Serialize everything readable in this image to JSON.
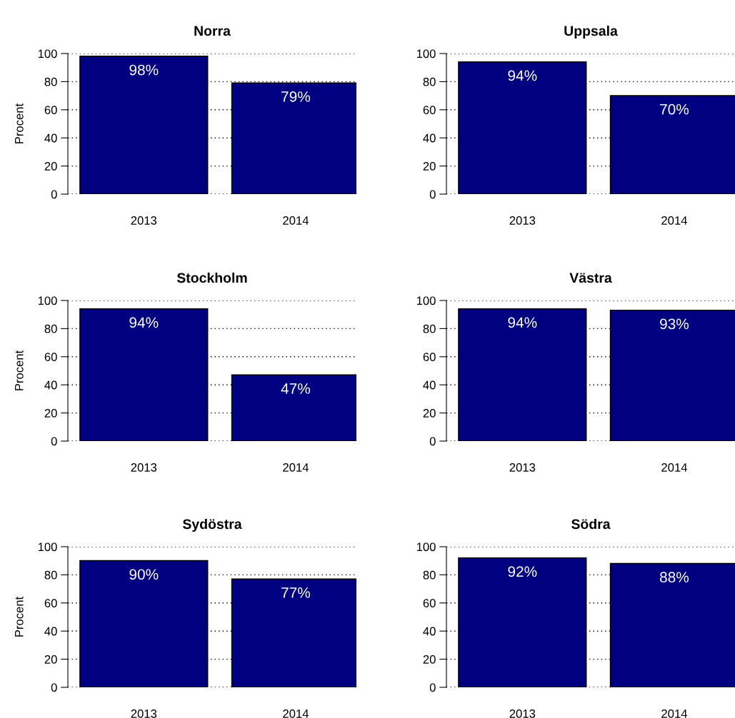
{
  "chart_data": [
    {
      "type": "bar",
      "title": "Norra",
      "ylabel": "Procent",
      "categories": [
        "2013",
        "2014"
      ],
      "values": [
        98,
        79
      ],
      "value_labels": [
        "98%",
        "79%"
      ],
      "color": "#000080",
      "ylim": [
        0,
        100
      ],
      "yticks": [
        0,
        20,
        40,
        60,
        80,
        100
      ],
      "grid": "y"
    },
    {
      "type": "bar",
      "title": "Uppsala",
      "categories": [
        "2013",
        "2014"
      ],
      "values": [
        94,
        70
      ],
      "value_labels": [
        "94%",
        "70%"
      ],
      "color": "#000080",
      "ylim": [
        0,
        100
      ],
      "yticks": [
        0,
        20,
        40,
        60,
        80,
        100
      ],
      "grid": "y"
    },
    {
      "type": "bar",
      "title": "Stockholm",
      "ylabel": "Procent",
      "categories": [
        "2013",
        "2014"
      ],
      "values": [
        94,
        47
      ],
      "value_labels": [
        "94%",
        "47%"
      ],
      "color": "#000080",
      "ylim": [
        0,
        100
      ],
      "yticks": [
        0,
        20,
        40,
        60,
        80,
        100
      ],
      "grid": "y"
    },
    {
      "type": "bar",
      "title": "Västra",
      "categories": [
        "2013",
        "2014"
      ],
      "values": [
        94,
        93
      ],
      "value_labels": [
        "94%",
        "93%"
      ],
      "color": "#000080",
      "ylim": [
        0,
        100
      ],
      "yticks": [
        0,
        20,
        40,
        60,
        80,
        100
      ],
      "grid": "y"
    },
    {
      "type": "bar",
      "title": "Sydöstra",
      "ylabel": "Procent",
      "categories": [
        "2013",
        "2014"
      ],
      "values": [
        90,
        77
      ],
      "value_labels": [
        "90%",
        "77%"
      ],
      "color": "#000080",
      "ylim": [
        0,
        100
      ],
      "yticks": [
        0,
        20,
        40,
        60,
        80,
        100
      ],
      "grid": "y"
    },
    {
      "type": "bar",
      "title": "Södra",
      "categories": [
        "2013",
        "2014"
      ],
      "values": [
        92,
        88
      ],
      "value_labels": [
        "92%",
        "88%"
      ],
      "color": "#000080",
      "ylim": [
        0,
        100
      ],
      "yticks": [
        0,
        20,
        40,
        60,
        80,
        100
      ],
      "grid": "y"
    }
  ]
}
